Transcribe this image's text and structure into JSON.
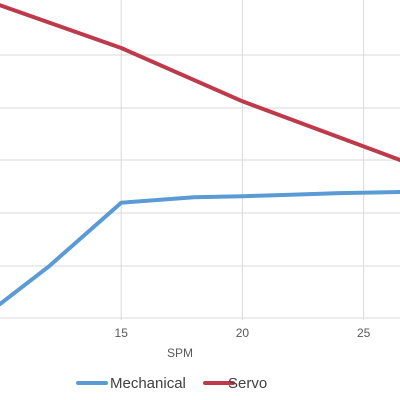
{
  "chart_data": {
    "type": "line",
    "xlabel": "SPM",
    "ylabel": "",
    "xlim": [
      10,
      26.5
    ],
    "ylim": [
      0,
      6
    ],
    "x_ticks": [
      15,
      20,
      25
    ],
    "grid": true,
    "legend_position": "bottom",
    "series": [
      {
        "name": "Mechanical",
        "color": "#5B9BD5",
        "x": [
          10,
          12,
          15,
          18,
          20,
          22,
          24,
          26.5
        ],
        "y": [
          0.3,
          1.0,
          2.2,
          2.3,
          2.32,
          2.35,
          2.38,
          2.4
        ]
      },
      {
        "name": "Servo",
        "color": "#BE3A4B",
        "x": [
          10,
          15,
          20,
          26.5
        ],
        "y": [
          5.9,
          5.1,
          4.1,
          3.0
        ]
      }
    ]
  }
}
